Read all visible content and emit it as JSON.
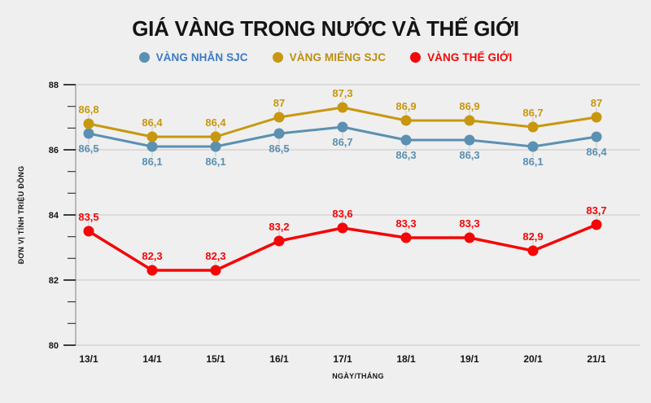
{
  "page": {
    "background": "#efefef"
  },
  "title": "GIÁ VÀNG TRONG NƯỚC VÀ THẾ GIỚI",
  "legend": {
    "items": [
      {
        "label": "VÀNG NHẪN SJC",
        "dot_color": "#5b90b2",
        "text_color": "#3b7ac4"
      },
      {
        "label": "VÀNG MIẾNG SJC",
        "dot_color": "#c8970f",
        "text_color": "#bd8e10"
      },
      {
        "label": "VÀNG THẾ GIỚI",
        "dot_color": "#f40606",
        "text_color": "#f40606"
      }
    ]
  },
  "chart_data": {
    "type": "line",
    "title": "GIÁ VÀNG TRONG NƯỚC VÀ THẾ GIỚI",
    "categories": [
      "13/1",
      "14/1",
      "15/1",
      "16/1",
      "17/1",
      "18/1",
      "19/1",
      "20/1",
      "21/1"
    ],
    "series": [
      {
        "name": "VÀNG NHẪN SJC",
        "color": "#5b90b2",
        "values": [
          86.5,
          86.1,
          86.1,
          86.5,
          86.7,
          86.3,
          86.3,
          86.1,
          86.4
        ],
        "label_position": "below"
      },
      {
        "name": "VÀNG MIẾNG SJC",
        "color": "#c8970f",
        "values": [
          86.8,
          86.4,
          86.4,
          87,
          87.3,
          86.9,
          86.9,
          86.7,
          87
        ],
        "label_position": "above"
      },
      {
        "name": "VÀNG THẾ GIỚI",
        "color": "#f40606",
        "values": [
          83.5,
          82.3,
          82.3,
          83.2,
          83.6,
          83.3,
          83.3,
          82.9,
          83.7
        ],
        "label_position": "above"
      }
    ],
    "xlabel": "NGÀY/THÁNG",
    "ylabel": "ĐƠN VỊ TÍNH TRIỆU ĐỒNG",
    "ylim": [
      80,
      88
    ],
    "yticks": [
      80,
      82,
      84,
      86,
      88
    ],
    "minor_ticks_between_major": 2,
    "grid": "horizontal",
    "legend_position": "top",
    "decimal_separator": ",",
    "data_labels_shown": true
  }
}
